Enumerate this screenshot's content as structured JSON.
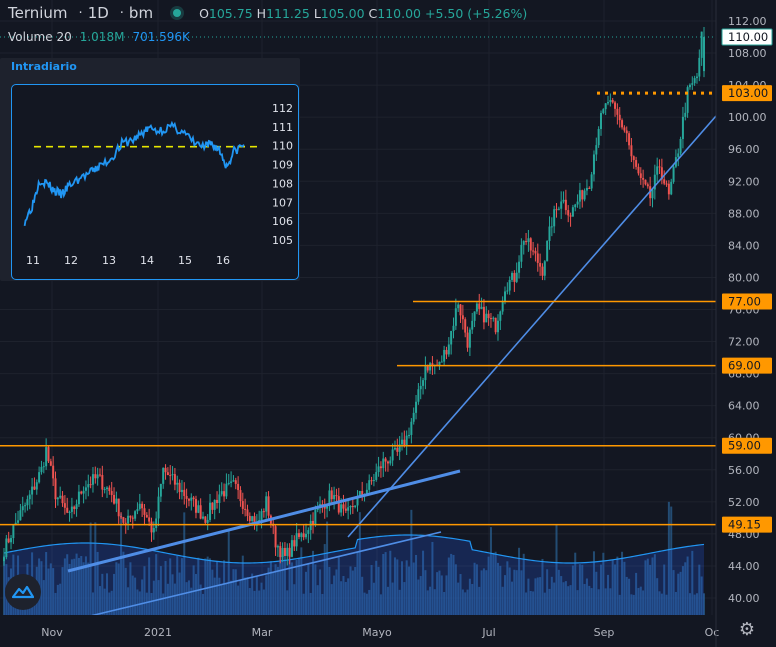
{
  "legend": {
    "symbol": "Ternium",
    "interval": "1D",
    "exchange": "bm",
    "open_label": "O",
    "open": "105.75",
    "high_label": "H",
    "high": "111.25",
    "low_label": "L",
    "low": "105.00",
    "close_label": "C",
    "close": "110.00",
    "change": "+5.50 (+5.26%)"
  },
  "volume_legend": {
    "title": "Volume 20",
    "value": "1.018M",
    "ma": "701.596K"
  },
  "inset": {
    "title": "Intradiario",
    "y_ticks": [
      "112",
      "111",
      "110",
      "109",
      "108",
      "107",
      "106",
      "105"
    ],
    "x_ticks": [
      "11",
      "12",
      "13",
      "14",
      "15",
      "16"
    ]
  },
  "colors": {
    "background": "#131722",
    "up": "#26a69a",
    "down": "#ef5350",
    "level": "#ff9800",
    "trend": "#4f8de6",
    "inset_line": "#2196f3",
    "inset_ref": "#e6e600",
    "volume": "#2a5f8f"
  },
  "chart_data": {
    "type": "candlestick",
    "y_ticks": [
      "112.00",
      "108.00",
      "104.00",
      "100.00",
      "96.00",
      "92.00",
      "88.00",
      "84.00",
      "80.00",
      "76.00",
      "72.00",
      "68.00",
      "64.00",
      "60.00",
      "56.00",
      "52.00",
      "48.00",
      "44.00",
      "40.00"
    ],
    "x_ticks": [
      "Nov",
      "2021",
      "Mar",
      "Mayo",
      "Jul",
      "Sep",
      "Oc"
    ],
    "price_labels": [
      "110.00",
      "103.00",
      "77.00",
      "69.00",
      "59.00",
      "49.15"
    ],
    "levels": [
      {
        "label": "103.00",
        "value": 103.0,
        "style": "dotted"
      },
      {
        "label": "77.00",
        "value": 77.0,
        "style": "solid"
      },
      {
        "label": "69.00",
        "value": 69.0,
        "style": "solid"
      },
      {
        "label": "59.00",
        "value": 59.0,
        "style": "solid"
      },
      {
        "label": "49.15",
        "value": 49.15,
        "style": "solid"
      }
    ],
    "close_path": [
      {
        "i": 0,
        "v": 46
      },
      {
        "i": 6,
        "v": 50
      },
      {
        "i": 10,
        "v": 52
      },
      {
        "i": 16,
        "v": 56
      },
      {
        "i": 18,
        "v": 58.5
      },
      {
        "i": 22,
        "v": 53
      },
      {
        "i": 28,
        "v": 50
      },
      {
        "i": 34,
        "v": 54
      },
      {
        "i": 40,
        "v": 55
      },
      {
        "i": 46,
        "v": 53
      },
      {
        "i": 52,
        "v": 49
      },
      {
        "i": 58,
        "v": 52
      },
      {
        "i": 64,
        "v": 48
      },
      {
        "i": 68,
        "v": 56
      },
      {
        "i": 74,
        "v": 54
      },
      {
        "i": 80,
        "v": 52
      },
      {
        "i": 86,
        "v": 50
      },
      {
        "i": 92,
        "v": 53
      },
      {
        "i": 98,
        "v": 54
      },
      {
        "i": 104,
        "v": 51
      },
      {
        "i": 108,
        "v": 49
      },
      {
        "i": 112,
        "v": 52
      },
      {
        "i": 116,
        "v": 47
      },
      {
        "i": 120,
        "v": 45
      },
      {
        "i": 124,
        "v": 47
      },
      {
        "i": 128,
        "v": 48
      },
      {
        "i": 134,
        "v": 51
      },
      {
        "i": 140,
        "v": 53
      },
      {
        "i": 146,
        "v": 50
      },
      {
        "i": 150,
        "v": 52
      },
      {
        "i": 156,
        "v": 54
      },
      {
        "i": 162,
        "v": 57
      },
      {
        "i": 168,
        "v": 58
      },
      {
        "i": 172,
        "v": 60
      },
      {
        "i": 176,
        "v": 64
      },
      {
        "i": 180,
        "v": 69
      },
      {
        "i": 186,
        "v": 69
      },
      {
        "i": 190,
        "v": 72
      },
      {
        "i": 194,
        "v": 77
      },
      {
        "i": 198,
        "v": 72
      },
      {
        "i": 202,
        "v": 76
      },
      {
        "i": 206,
        "v": 75
      },
      {
        "i": 210,
        "v": 74
      },
      {
        "i": 214,
        "v": 79
      },
      {
        "i": 218,
        "v": 80
      },
      {
        "i": 222,
        "v": 85
      },
      {
        "i": 226,
        "v": 83
      },
      {
        "i": 230,
        "v": 81
      },
      {
        "i": 234,
        "v": 87
      },
      {
        "i": 238,
        "v": 90
      },
      {
        "i": 242,
        "v": 88
      },
      {
        "i": 246,
        "v": 90
      },
      {
        "i": 250,
        "v": 92
      },
      {
        "i": 254,
        "v": 99
      },
      {
        "i": 258,
        "v": 102
      },
      {
        "i": 262,
        "v": 100
      },
      {
        "i": 266,
        "v": 98
      },
      {
        "i": 268,
        "v": 95
      },
      {
        "i": 272,
        "v": 92
      },
      {
        "i": 276,
        "v": 90
      },
      {
        "i": 280,
        "v": 94
      },
      {
        "i": 284,
        "v": 90
      },
      {
        "i": 288,
        "v": 96
      },
      {
        "i": 292,
        "v": 103
      },
      {
        "i": 296,
        "v": 105
      },
      {
        "i": 298,
        "v": 110
      }
    ],
    "inset_series": [
      {
        "t": 11.0,
        "v": 106.0
      },
      {
        "t": 11.2,
        "v": 106.8
      },
      {
        "t": 11.4,
        "v": 108.2
      },
      {
        "t": 11.6,
        "v": 108.0
      },
      {
        "t": 11.8,
        "v": 107.6
      },
      {
        "t": 12.0,
        "v": 107.4
      },
      {
        "t": 12.2,
        "v": 107.9
      },
      {
        "t": 12.5,
        "v": 108.3
      },
      {
        "t": 12.8,
        "v": 108.6
      },
      {
        "t": 13.0,
        "v": 108.9
      },
      {
        "t": 13.3,
        "v": 109.3
      },
      {
        "t": 13.6,
        "v": 110.1
      },
      {
        "t": 13.9,
        "v": 110.3
      },
      {
        "t": 14.1,
        "v": 110.6
      },
      {
        "t": 14.3,
        "v": 110.9
      },
      {
        "t": 14.6,
        "v": 110.8
      },
      {
        "t": 14.9,
        "v": 111.0
      },
      {
        "t": 15.2,
        "v": 110.8
      },
      {
        "t": 15.5,
        "v": 110.2
      },
      {
        "t": 15.8,
        "v": 109.9
      },
      {
        "t": 16.0,
        "v": 110.1
      },
      {
        "t": 16.2,
        "v": 109.8
      },
      {
        "t": 16.4,
        "v": 108.9
      },
      {
        "t": 16.6,
        "v": 109.7
      },
      {
        "t": 16.9,
        "v": 110.1
      }
    ],
    "inset_ref_value": 109.95
  }
}
